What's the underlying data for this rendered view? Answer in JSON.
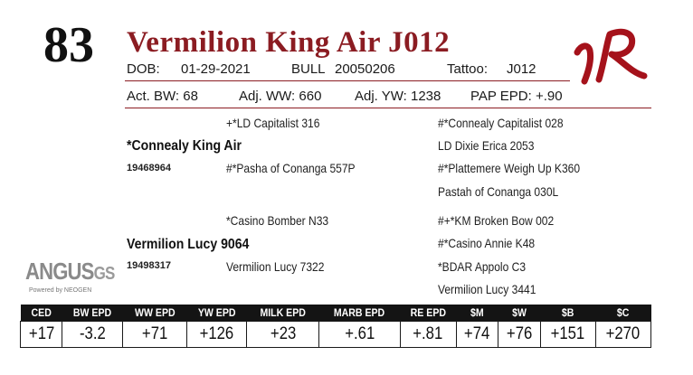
{
  "lot_number": "83",
  "animal_name": "Vermilion King Air J012",
  "info_row1": {
    "dob_label": "DOB:",
    "dob": "01-29-2021",
    "sex_label": "BULL",
    "registration": "20050206",
    "tattoo_label": "Tattoo:",
    "tattoo": "J012"
  },
  "info_row2": {
    "act_bw": "Act. BW: 68",
    "adj_ww": "Adj. WW: 660",
    "adj_yw": "Adj. YW: 1238",
    "pap_epd": "PAP EPD: +.90"
  },
  "pedigree": {
    "sire": "*Connealy King Air",
    "sire_reg": "19468964",
    "sire_sire": "+*LD Capitalist 316",
    "sire_dam": "#*Pasha of Conanga 557P",
    "sire_sire_sire": "#*Connealy Capitalist 028",
    "sire_sire_dam": "LD Dixie Erica 2053",
    "sire_dam_sire": "#*Plattemere Weigh Up K360",
    "sire_dam_dam": "Pastah of Conanga 030L",
    "dam": "Vermilion Lucy 9064",
    "dam_reg": "19498317",
    "dam_sire": "*Casino Bomber N33",
    "dam_dam": "Vermilion Lucy 7322",
    "dam_sire_sire": "#+*KM Broken Bow 002",
    "dam_sire_dam": "#*Casino Annie K48",
    "dam_dam_sire": "*BDAR Appolo C3",
    "dam_dam_dam": "Vermilion Lucy 3441"
  },
  "logo": {
    "brand_mark": "VR",
    "angus_main": "ANGUS",
    "angus_gs": "GS",
    "angus_sub": "Powered by NEOGEN"
  },
  "epd_table": {
    "headers": [
      "CED",
      "BW EPD",
      "WW EPD",
      "YW EPD",
      "MILK EPD",
      "MARB EPD",
      "RE EPD",
      "$M",
      "$W",
      "$B",
      "$C"
    ],
    "values": [
      "+17",
      "-3.2",
      "+71",
      "+126",
      "+23",
      "+.61",
      "+.81",
      "+74",
      "+76",
      "+151",
      "+270"
    ]
  },
  "colors": {
    "accent": "#8b1c22",
    "header_bg": "#141414"
  }
}
